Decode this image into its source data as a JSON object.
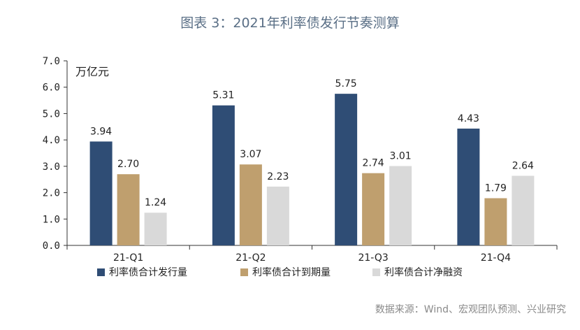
{
  "chart_data": {
    "type": "bar",
    "title": "图表 3：2021年利率债发行节奏测算",
    "unit_label": "万亿元",
    "categories": [
      "21-Q1",
      "21-Q2",
      "21-Q3",
      "21-Q4"
    ],
    "series": [
      {
        "name": "利率债合计发行量",
        "values": [
          3.94,
          5.31,
          5.75,
          4.43
        ],
        "color": "#2f4d75"
      },
      {
        "name": "利率债合计到期量",
        "values": [
          2.7,
          3.07,
          2.74,
          1.79
        ],
        "color": "#bf9f6e"
      },
      {
        "name": "利率债合计净融资",
        "values": [
          1.24,
          2.23,
          3.01,
          2.64
        ],
        "color": "#d9d9d9"
      }
    ],
    "ylim": [
      0,
      7
    ],
    "yticks": [
      "0.0",
      "1.0",
      "2.0",
      "3.0",
      "4.0",
      "5.0",
      "6.0",
      "7.0"
    ],
    "legend_position": "bottom",
    "grid": false
  },
  "source": "数据来源：Wind、宏观团队预测、兴业研究"
}
